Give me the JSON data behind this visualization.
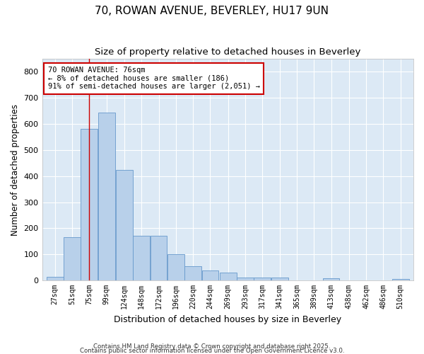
{
  "title_line1": "70, ROWAN AVENUE, BEVERLEY, HU17 9UN",
  "title_line2": "Size of property relative to detached houses in Beverley",
  "xlabel": "Distribution of detached houses by size in Beverley",
  "ylabel": "Number of detached properties",
  "bins": [
    27,
    51,
    75,
    99,
    124,
    148,
    172,
    196,
    220,
    244,
    269,
    293,
    317,
    341,
    365,
    389,
    413,
    438,
    462,
    486,
    510
  ],
  "values": [
    15,
    165,
    580,
    645,
    425,
    170,
    170,
    100,
    55,
    37,
    30,
    12,
    10,
    10,
    0,
    0,
    7,
    0,
    0,
    0,
    6
  ],
  "bar_color": "#b8d0ea",
  "bar_edge_color": "#6699cc",
  "property_line_x": 75,
  "property_line_color": "#cc0000",
  "annotation_text": "70 ROWAN AVENUE: 76sqm\n← 8% of detached houses are smaller (186)\n91% of semi-detached houses are larger (2,051) →",
  "annotation_box_color": "#ffffff",
  "annotation_box_edge_color": "#cc0000",
  "ylim": [
    0,
    850
  ],
  "yticks": [
    0,
    100,
    200,
    300,
    400,
    500,
    600,
    700,
    800
  ],
  "plot_bg_color": "#dce9f5",
  "grid_color": "#ffffff",
  "footer_line1": "Contains HM Land Registry data © Crown copyright and database right 2025.",
  "footer_line2": "Contains public sector information licensed under the Open Government Licence v3.0.",
  "fig_bg_color": "#ffffff"
}
